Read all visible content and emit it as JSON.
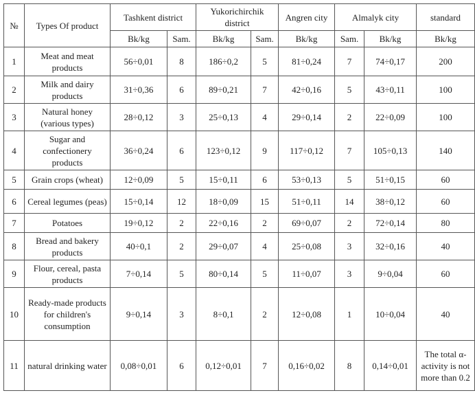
{
  "header": {
    "row1": [
      "№",
      "Types Of product",
      "Tashkent district",
      "Yukorichirchik district",
      "Angren city",
      "Almalyk city",
      "standard"
    ],
    "row2": [
      "Bk/kg",
      "Sam.",
      "Bk/kg",
      "Sam.",
      "Bk/kg",
      "Sam.",
      "Bk/kg",
      "Bk/kg"
    ]
  },
  "table": {
    "rows": [
      [
        "1",
        "Meat and meat products",
        "56÷0,01",
        "8",
        "186÷0,2",
        "5",
        "81÷0,24",
        "7",
        "74÷0,17",
        "200"
      ],
      [
        "2",
        "Milk and dairy products",
        "31÷0,36",
        "6",
        "89÷0,21",
        "7",
        "42÷0,16",
        "5",
        "43÷0,11",
        "100"
      ],
      [
        "3",
        "Natural honey (various types)",
        "28÷0,12",
        "3",
        "25÷0,13",
        "4",
        "29÷0,14",
        "2",
        "22÷0,09",
        "100"
      ],
      [
        "4",
        "Sugar and confectionery products",
        "36÷0,24",
        "6",
        "123÷0,12",
        "9",
        "117÷0,12",
        "7",
        "105÷0,13",
        "140"
      ],
      [
        "5",
        "Grain crops (wheat)",
        "12÷0,09",
        "5",
        "15÷0,11",
        "6",
        "53÷0,13",
        "5",
        "51÷0,15",
        "60"
      ],
      [
        "6",
        "Cereal legumes (peas)",
        "15÷0,14",
        "12",
        "18÷0,09",
        "15",
        "51÷0,11",
        "14",
        "38÷0,12",
        "60"
      ],
      [
        "7",
        "Potatoes",
        "19÷0,12",
        "2",
        "22÷0,16",
        "2",
        "69÷0,07",
        "2",
        "72÷0,14",
        "80"
      ],
      [
        "8",
        "Bread and bakery products",
        "40÷0,1",
        "2",
        "29÷0,07",
        "4",
        "25÷0,08",
        "3",
        "32÷0,16",
        "40"
      ],
      [
        "9",
        "Flour, cereal, pasta products",
        "7÷0,14",
        "5",
        "80÷0,14",
        "5",
        "11÷0,07",
        "3",
        "9÷0,04",
        "60"
      ],
      [
        "10",
        "Ready-made products for children's consumption",
        "9÷0,14",
        "3",
        "8÷0,1",
        "2",
        "12÷0,08",
        "1",
        "10÷0,04",
        "40"
      ],
      [
        "11",
        "natural drinking water",
        "0,08÷0,01",
        "6",
        "0,12÷0,01",
        "7",
        "0,16÷0,02",
        "8",
        "0,14÷0,01",
        "The total α-activity is not more than 0.2"
      ]
    ]
  }
}
